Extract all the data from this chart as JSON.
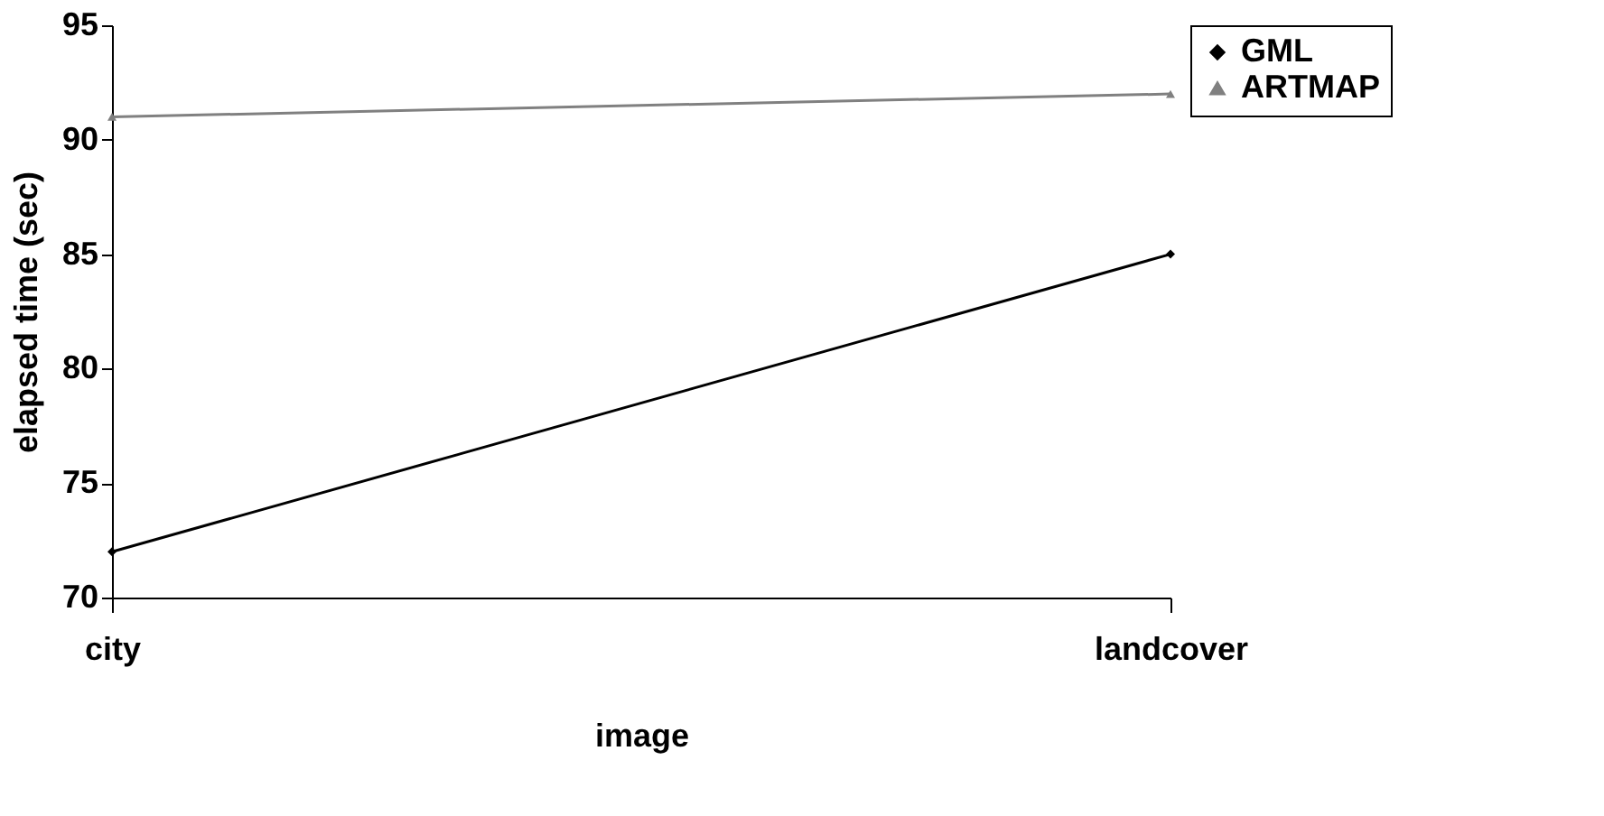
{
  "chart_data": {
    "type": "line",
    "xlabel": "image",
    "ylabel": "elapsed time (sec)",
    "categories": [
      "city",
      "landcover"
    ],
    "series": [
      {
        "name": "GML",
        "color": "#000000",
        "values": [
          72,
          85
        ],
        "marker": "diamond"
      },
      {
        "name": "ARTMAP",
        "color": "#808080",
        "values": [
          91,
          92
        ],
        "marker": "triangle"
      }
    ],
    "ylim": [
      70,
      95
    ],
    "yticks": [
      70,
      75,
      80,
      85,
      90,
      95
    ],
    "grid": false,
    "legend": "right",
    "line_style": "solid"
  }
}
